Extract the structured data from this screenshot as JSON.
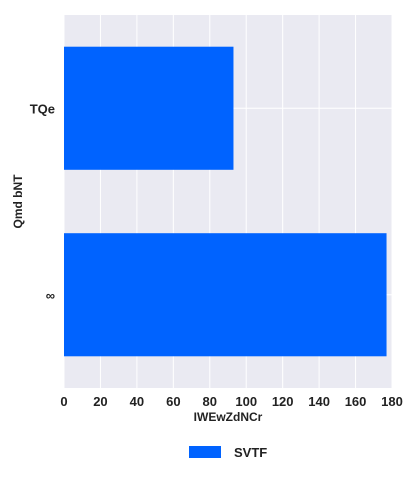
{
  "chart_data": {
    "type": "bar",
    "orientation": "horizontal",
    "categories": [
      "TQe",
      "∞"
    ],
    "series": [
      {
        "name": "SVTF",
        "values": [
          93,
          177
        ]
      }
    ],
    "xlabel": "IWEwZdNCr",
    "ylabel": "Qmd bNT",
    "xlim": [
      0,
      180
    ],
    "xticks": [
      0,
      20,
      40,
      60,
      80,
      100,
      120,
      140,
      160,
      180
    ],
    "grid": true,
    "legend_position": "bottom-center",
    "colors": {
      "bar": "#0063FF",
      "plot_background": "#EAEAF2",
      "grid": "#FFFFFF"
    }
  }
}
